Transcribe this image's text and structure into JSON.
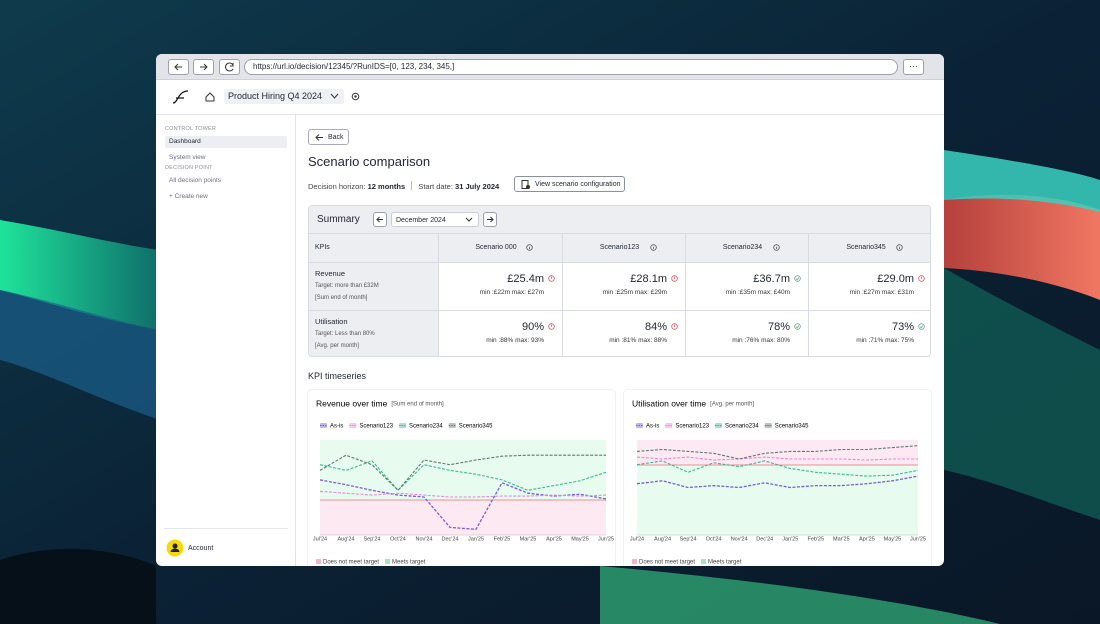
{
  "browser": {
    "url": "https://url.io/decision/12345/?RunIDS=[0, 123, 234, 345,]"
  },
  "header": {
    "project": "Product Hiring Q4 2024"
  },
  "sidebar": {
    "sections": [
      {
        "title": "CONTROL TOWER",
        "items": [
          "Dashboard",
          "System view"
        ]
      },
      {
        "title": "DECISION POINT",
        "items": [
          "All decision points",
          "+ Create new"
        ]
      }
    ],
    "account": "Account"
  },
  "page": {
    "back": "Back",
    "title": "Scenario comparison",
    "horizon_label": "Decision horizon:",
    "horizon": "12 months",
    "start_label": "Start date:",
    "start": "31 July 2024",
    "config_button": "View scenario configuration"
  },
  "summary": {
    "title": "Summary",
    "month": "December 2024",
    "kpi_header": "KPIs",
    "scenarios": [
      "Scenario 000",
      "Scenario123",
      "Scenario234",
      "Scenario345"
    ],
    "rows": [
      {
        "name": "Revenue",
        "target": "Target: more than £32M",
        "note": "[Sum end of month]",
        "cells": [
          {
            "value": "£25.4m",
            "range": "min :£22m max: £27m",
            "meets": false
          },
          {
            "value": "£28.1m",
            "range": "min :£25m max: £29m",
            "meets": false
          },
          {
            "value": "£36.7m",
            "range": "min :£35m max: £40m",
            "meets": true
          },
          {
            "value": "£29.0m",
            "range": "min :£27m max: £31m",
            "meets": false
          }
        ]
      },
      {
        "name": "Utilisation",
        "target": "Target: Less than 80%",
        "note": "[Avg. per month]",
        "cells": [
          {
            "value": "90%",
            "range": "min :88% max: 93%",
            "meets": false
          },
          {
            "value": "84%",
            "range": "min :81% max: 88%",
            "meets": false
          },
          {
            "value": "78%",
            "range": "min :76% max: 80%",
            "meets": true
          },
          {
            "value": "73%",
            "range": "min :71% max: 75%",
            "meets": true
          }
        ]
      }
    ]
  },
  "timeseries": {
    "title": "KPI timeseries",
    "charts": [
      {
        "type": "line",
        "title": "Revenue over time",
        "subtitle": "[Sum end of month]",
        "target_side": "above",
        "categories": [
          "Jul'24",
          "Aug'24",
          "Sep'24",
          "Oct'24",
          "Nov'24",
          "Dec'24",
          "Jan'25",
          "Feb'25",
          "Mar'25",
          "Apr'25",
          "May'25",
          "Jun'25"
        ],
        "ylim": [
          0,
          100
        ],
        "series": [
          {
            "name": "As-is",
            "color": "#7b5cd6",
            "values": [
              58,
              53,
              47,
              42,
              40,
              8,
              6,
              55,
              44,
              41,
              43,
              38
            ]
          },
          {
            "name": "Scenario123",
            "color": "#e58ad6",
            "values": [
              46,
              44,
              42,
              44,
              42,
              40,
              40,
              41,
              41,
              42,
              41,
              42
            ]
          },
          {
            "name": "Scenario234",
            "color": "#36b99a",
            "values": [
              74,
              68,
              78,
              47,
              74,
              68,
              64,
              58,
              47,
              52,
              57,
              66
            ]
          },
          {
            "name": "Scenario345",
            "color": "#5f7a72",
            "values": [
              68,
              84,
              74,
              47,
              79,
              74,
              79,
              83,
              84,
              84,
              84,
              84
            ]
          }
        ],
        "legend": [
          "Does not meet target",
          "Meets target"
        ]
      },
      {
        "type": "line",
        "title": "Utilisation over time",
        "subtitle": "[Avg. per month]",
        "target_side": "below",
        "categories": [
          "Jul'24",
          "Aug'24",
          "Sep'24",
          "Oct'24",
          "Nov'24",
          "Dec'24",
          "Jan'25",
          "Feb'25",
          "Mar'25",
          "Apr'25",
          "May'25",
          "Jun'25"
        ],
        "ylim": [
          0,
          100
        ],
        "series": [
          {
            "name": "As-is",
            "color": "#7b5cd6",
            "values": [
              54,
              57,
              50,
              52,
              50,
              55,
              50,
              52,
              52,
              54,
              57,
              62
            ]
          },
          {
            "name": "Scenario123",
            "color": "#e58ad6",
            "values": [
              82,
              80,
              82,
              79,
              80,
              82,
              80,
              80,
              80,
              79,
              80,
              80
            ]
          },
          {
            "name": "Scenario234",
            "color": "#36b99a",
            "values": [
              74,
              78,
              66,
              76,
              72,
              78,
              70,
              66,
              64,
              62,
              63,
              68
            ]
          },
          {
            "name": "Scenario345",
            "color": "#5f7a72",
            "values": [
              88,
              90,
              88,
              86,
              80,
              86,
              88,
              88,
              90,
              90,
              92,
              94
            ]
          }
        ],
        "legend": [
          "Does not meet target",
          "Meets target"
        ]
      }
    ]
  }
}
